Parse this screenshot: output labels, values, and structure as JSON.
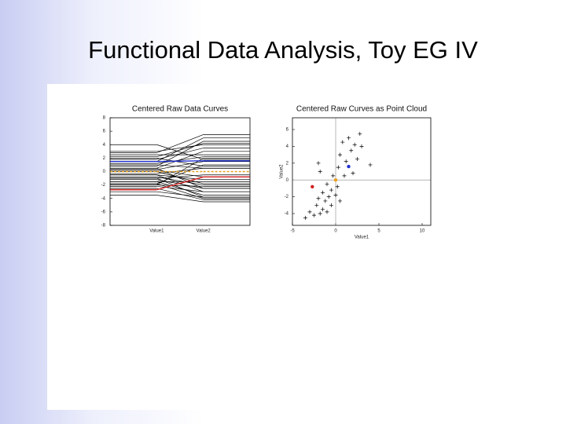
{
  "slide": {
    "title": "Functional Data Analysis, Toy EG IV"
  },
  "chart_data": [
    {
      "type": "parallel",
      "title": "Centered Raw Data Curves",
      "categories": [
        "Value1",
        "Value2"
      ],
      "ylim": [
        -8,
        8
      ],
      "yticks": [
        -8,
        -6,
        -4,
        -2,
        0,
        2,
        4,
        6,
        8
      ],
      "series": [
        {
          "color": "#000000",
          "values": [
            -3.5,
            -4.5
          ]
        },
        {
          "color": "#000000",
          "values": [
            -3,
            -3.8
          ]
        },
        {
          "color": "#000000",
          "values": [
            -2.5,
            -4.2
          ]
        },
        {
          "color": "#000000",
          "values": [
            -2.2,
            -3
          ]
        },
        {
          "color": "#000000",
          "values": [
            -2,
            -2.2
          ]
        },
        {
          "color": "#000000",
          "values": [
            -1.8,
            -4
          ]
        },
        {
          "color": "#000000",
          "values": [
            -1.5,
            -3.5
          ]
        },
        {
          "color": "#000000",
          "values": [
            -1.5,
            -1.5
          ]
        },
        {
          "color": "#000000",
          "values": [
            -1.2,
            -2.5
          ]
        },
        {
          "color": "#000000",
          "values": [
            -1,
            -3.8
          ]
        },
        {
          "color": "#000000",
          "values": [
            -1,
            -0.5
          ]
        },
        {
          "color": "#000000",
          "values": [
            -0.8,
            -2
          ]
        },
        {
          "color": "#000000",
          "values": [
            -0.5,
            -1.2
          ]
        },
        {
          "color": "#000000",
          "values": [
            -0.5,
            -3
          ]
        },
        {
          "color": "#000000",
          "values": [
            -0.3,
            0.5
          ]
        },
        {
          "color": "#000000",
          "values": [
            0,
            -1.8
          ]
        },
        {
          "color": "#000000",
          "values": [
            0.2,
            -0.8
          ]
        },
        {
          "color": "#000000",
          "values": [
            0.3,
            1.5
          ]
        },
        {
          "color": "#000000",
          "values": [
            0.5,
            -2.5
          ]
        },
        {
          "color": "#000000",
          "values": [
            0.5,
            3
          ]
        },
        {
          "color": "#000000",
          "values": [
            0.8,
            4.5
          ]
        },
        {
          "color": "#000000",
          "values": [
            1,
            0.5
          ]
        },
        {
          "color": "#000000",
          "values": [
            1.2,
            2.2
          ]
        },
        {
          "color": "#000000",
          "values": [
            1.5,
            5
          ]
        },
        {
          "color": "#000000",
          "values": [
            1.8,
            3.5
          ]
        },
        {
          "color": "#000000",
          "values": [
            2,
            0.8
          ]
        },
        {
          "color": "#000000",
          "values": [
            2.2,
            4.2
          ]
        },
        {
          "color": "#000000",
          "values": [
            2.5,
            2.5
          ]
        },
        {
          "color": "#000000",
          "values": [
            2.8,
            5.5
          ]
        },
        {
          "color": "#000000",
          "values": [
            3,
            4
          ]
        },
        {
          "color": "#000000",
          "values": [
            -2,
            2
          ]
        },
        {
          "color": "#000000",
          "values": [
            -1.8,
            1
          ]
        },
        {
          "color": "#000000",
          "values": [
            4,
            1.8
          ]
        },
        {
          "color": "#1f2fd0",
          "values": [
            1.5,
            1.6
          ]
        },
        {
          "color": "#d01f1f",
          "values": [
            -2.7,
            -0.8
          ]
        },
        {
          "color": "#e8a020",
          "values": [
            0,
            0
          ],
          "dashed": true
        }
      ]
    },
    {
      "type": "scatter",
      "title": "Centered Raw Curves as Point Cloud",
      "xlabel": "Value1",
      "ylabel": "Value2",
      "xlim": [
        -5,
        11
      ],
      "xticks": [
        -5,
        0,
        5,
        10
      ],
      "ylim": [
        -5.4,
        7.4
      ],
      "yticks": [
        -4,
        -2,
        0,
        2,
        4,
        6
      ],
      "series": [
        {
          "color": "#000000",
          "marker": "plus",
          "x": [
            -3.5,
            -3,
            -2.5,
            -2.2,
            -2,
            -1.8,
            -1.5,
            -1.5,
            -1.2,
            -1,
            -1,
            -0.8,
            -0.5,
            -0.5,
            -0.3,
            0,
            0.2,
            0.3,
            0.5,
            0.5,
            0.8,
            1,
            1.2,
            1.5,
            1.8,
            2,
            2.2,
            2.5,
            2.8,
            3,
            -2,
            -1.8,
            4
          ],
          "y": [
            -4.5,
            -3.8,
            -4.2,
            -3,
            -2.2,
            -4,
            -3.5,
            -1.5,
            -2.5,
            -3.8,
            -0.5,
            -2,
            -1.2,
            -3,
            0.5,
            -1.8,
            -0.8,
            1.5,
            -2.5,
            3,
            4.5,
            0.5,
            2.2,
            5,
            3.5,
            0.8,
            4.2,
            2.5,
            5.5,
            4,
            2,
            1,
            1.8
          ]
        },
        {
          "color": "#1f2fd0",
          "marker": "dot",
          "x": [
            1.5
          ],
          "y": [
            1.6
          ]
        },
        {
          "color": "#d01f1f",
          "marker": "dot",
          "x": [
            -2.7
          ],
          "y": [
            -0.8
          ]
        },
        {
          "color": "#e8a020",
          "marker": "dot",
          "x": [
            0
          ],
          "y": [
            0
          ]
        }
      ]
    }
  ]
}
